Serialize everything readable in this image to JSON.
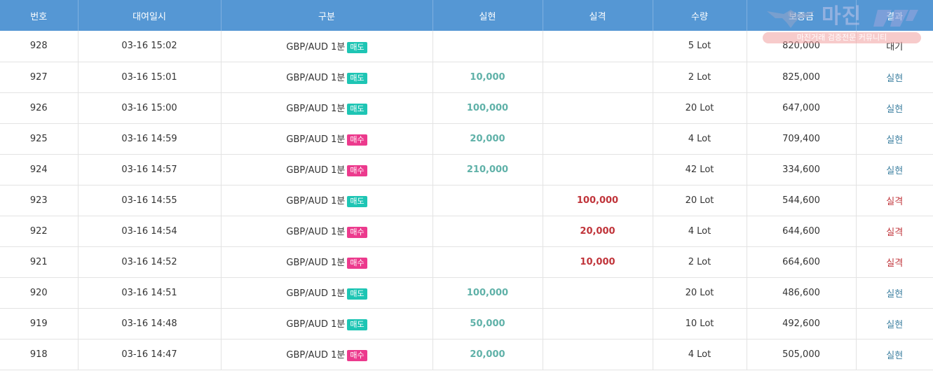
{
  "headers": [
    "번호",
    "대여일시",
    "구분",
    "실현",
    "실격",
    "수량",
    "보증금",
    "결과"
  ],
  "rows": [
    {
      "no": "928",
      "datetime": "03-16 15:02",
      "type": "GBP/AUD 1분",
      "side": "매도",
      "side_kind": "sell",
      "profit": "",
      "loss": "",
      "qty": "5 Lot",
      "deposit": "820,000",
      "result": "대기",
      "result_kind": "wait"
    },
    {
      "no": "927",
      "datetime": "03-16 15:01",
      "type": "GBP/AUD 1분",
      "side": "매도",
      "side_kind": "sell",
      "profit": "10,000",
      "loss": "",
      "qty": "2 Lot",
      "deposit": "825,000",
      "result": "실현",
      "result_kind": "win"
    },
    {
      "no": "926",
      "datetime": "03-16 15:00",
      "type": "GBP/AUD 1분",
      "side": "매도",
      "side_kind": "sell",
      "profit": "100,000",
      "loss": "",
      "qty": "20 Lot",
      "deposit": "647,000",
      "result": "실현",
      "result_kind": "win"
    },
    {
      "no": "925",
      "datetime": "03-16 14:59",
      "type": "GBP/AUD 1분",
      "side": "매수",
      "side_kind": "buy",
      "profit": "20,000",
      "loss": "",
      "qty": "4 Lot",
      "deposit": "709,400",
      "result": "실현",
      "result_kind": "win"
    },
    {
      "no": "924",
      "datetime": "03-16 14:57",
      "type": "GBP/AUD 1분",
      "side": "매수",
      "side_kind": "buy",
      "profit": "210,000",
      "loss": "",
      "qty": "42 Lot",
      "deposit": "334,600",
      "result": "실현",
      "result_kind": "win"
    },
    {
      "no": "923",
      "datetime": "03-16 14:55",
      "type": "GBP/AUD 1분",
      "side": "매도",
      "side_kind": "sell",
      "profit": "",
      "loss": "100,000",
      "qty": "20 Lot",
      "deposit": "544,600",
      "result": "실격",
      "result_kind": "lose"
    },
    {
      "no": "922",
      "datetime": "03-16 14:54",
      "type": "GBP/AUD 1분",
      "side": "매수",
      "side_kind": "buy",
      "profit": "",
      "loss": "20,000",
      "qty": "4 Lot",
      "deposit": "644,600",
      "result": "실격",
      "result_kind": "lose"
    },
    {
      "no": "921",
      "datetime": "03-16 14:52",
      "type": "GBP/AUD 1분",
      "side": "매수",
      "side_kind": "buy",
      "profit": "",
      "loss": "10,000",
      "qty": "2 Lot",
      "deposit": "664,600",
      "result": "실격",
      "result_kind": "lose"
    },
    {
      "no": "920",
      "datetime": "03-16 14:51",
      "type": "GBP/AUD 1분",
      "side": "매도",
      "side_kind": "sell",
      "profit": "100,000",
      "loss": "",
      "qty": "20 Lot",
      "deposit": "486,600",
      "result": "실현",
      "result_kind": "win"
    },
    {
      "no": "919",
      "datetime": "03-16 14:48",
      "type": "GBP/AUD 1분",
      "side": "매도",
      "side_kind": "sell",
      "profit": "50,000",
      "loss": "",
      "qty": "10 Lot",
      "deposit": "492,600",
      "result": "실현",
      "result_kind": "win"
    },
    {
      "no": "918",
      "datetime": "03-16 14:47",
      "type": "GBP/AUD 1분",
      "side": "매수",
      "side_kind": "buy",
      "profit": "20,000",
      "loss": "",
      "qty": "4 Lot",
      "deposit": "505,000",
      "result": "실현",
      "result_kind": "win"
    }
  ],
  "watermark": {
    "title": "마진",
    "subtitle": "마진거래 검증전문 커뮤니티"
  },
  "colors": {
    "header_bg": "#5597d4",
    "sell_badge": "#1ec5b4",
    "buy_badge": "#ec3a8d",
    "profit": "#5fb1a8",
    "loss": "#c0343a",
    "result_win": "#3c7fa0"
  }
}
